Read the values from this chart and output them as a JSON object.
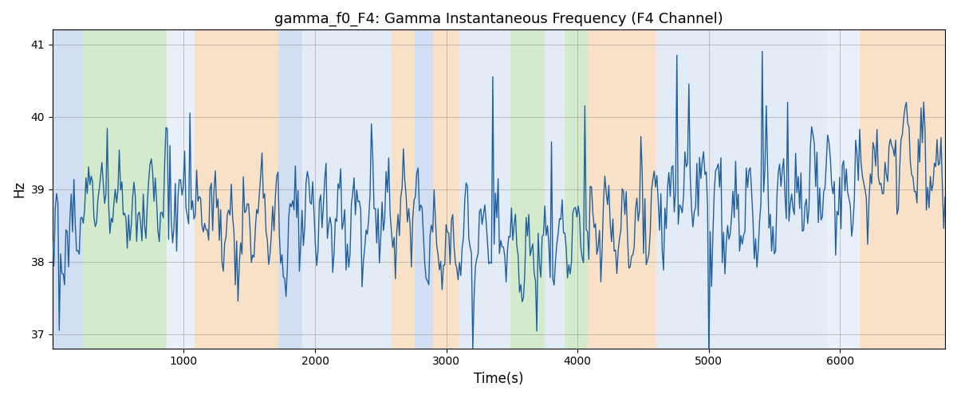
{
  "title": "gamma_f0_F4: Gamma Instantaneous Frequency (F4 Channel)",
  "xlabel": "Time(s)",
  "ylabel": "Hz",
  "ylim": [
    36.8,
    41.2
  ],
  "xlim": [
    0,
    6800
  ],
  "yticks": [
    37,
    38,
    39,
    40,
    41
  ],
  "xticks": [
    1000,
    2000,
    3000,
    4000,
    5000,
    6000
  ],
  "line_color": "#2060a0",
  "line_width": 1.0,
  "background_color": "#ffffff",
  "bands": [
    {
      "start": 0,
      "end": 230,
      "color": "#aec6e8",
      "alpha": 0.55
    },
    {
      "start": 230,
      "end": 870,
      "color": "#b2d9a4",
      "alpha": 0.55
    },
    {
      "start": 870,
      "end": 1080,
      "color": "#aec6e8",
      "alpha": 0.25
    },
    {
      "start": 1080,
      "end": 1720,
      "color": "#f5c99a",
      "alpha": 0.55
    },
    {
      "start": 1720,
      "end": 1900,
      "color": "#aec6e8",
      "alpha": 0.55
    },
    {
      "start": 1900,
      "end": 2580,
      "color": "#aec6e8",
      "alpha": 0.35
    },
    {
      "start": 2580,
      "end": 2760,
      "color": "#f5c99a",
      "alpha": 0.55
    },
    {
      "start": 2760,
      "end": 2900,
      "color": "#aec6e8",
      "alpha": 0.55
    },
    {
      "start": 2900,
      "end": 3100,
      "color": "#f5c99a",
      "alpha": 0.55
    },
    {
      "start": 3100,
      "end": 3490,
      "color": "#aec6e8",
      "alpha": 0.35
    },
    {
      "start": 3490,
      "end": 3750,
      "color": "#b2d9a4",
      "alpha": 0.55
    },
    {
      "start": 3750,
      "end": 3900,
      "color": "#aec6e8",
      "alpha": 0.35
    },
    {
      "start": 3900,
      "end": 4080,
      "color": "#b2d9a4",
      "alpha": 0.55
    },
    {
      "start": 4080,
      "end": 4600,
      "color": "#f5c99a",
      "alpha": 0.55
    },
    {
      "start": 4600,
      "end": 5900,
      "color": "#aec6e8",
      "alpha": 0.35
    },
    {
      "start": 5900,
      "end": 6150,
      "color": "#aec6e8",
      "alpha": 0.25
    },
    {
      "start": 6150,
      "end": 6800,
      "color": "#f5c99a",
      "alpha": 0.55
    }
  ],
  "seed": 17,
  "n_points": 670,
  "base_freq": 38.5
}
